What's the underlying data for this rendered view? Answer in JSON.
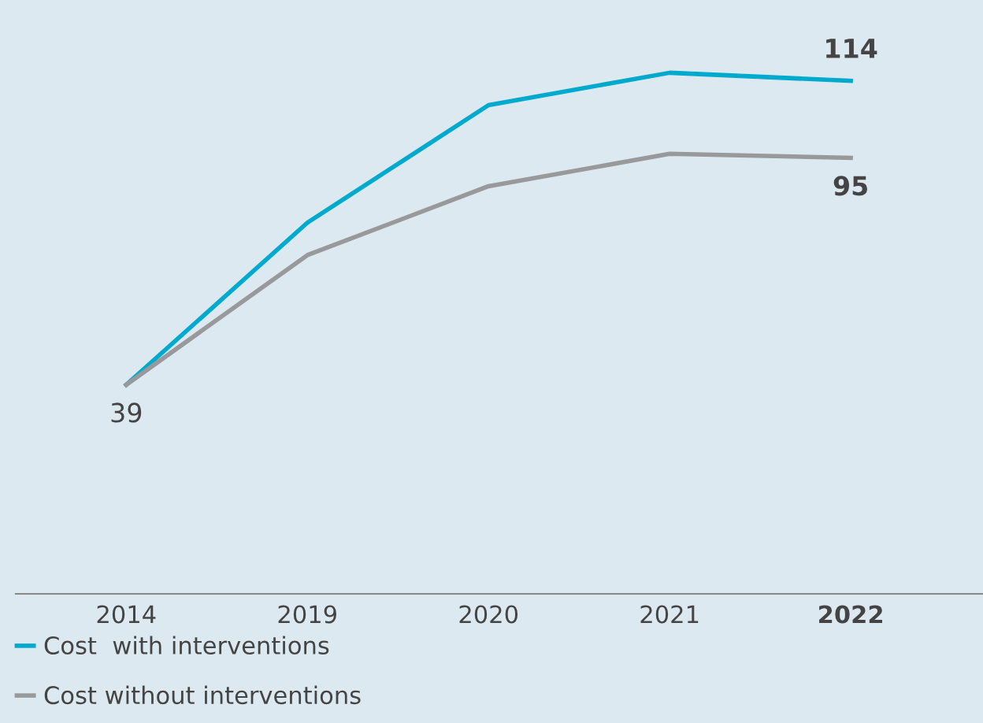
{
  "chart_data": {
    "type": "line",
    "categories": [
      "2014",
      "2019",
      "2020",
      "2021",
      "2022"
    ],
    "series": [
      {
        "name": "Cost  with interventions",
        "color": "#00a9ce",
        "values": [
          39,
          79,
          108,
          116,
          114
        ],
        "value_labels": [
          null,
          null,
          null,
          null,
          "114"
        ]
      },
      {
        "name": "Cost without interventions",
        "color": "#97999b",
        "values": [
          39,
          71,
          88,
          96,
          95
        ],
        "value_labels": [
          "39",
          null,
          null,
          null,
          "95"
        ]
      }
    ],
    "tick_labels": "x",
    "legend": "bottom",
    "marker": "none",
    "line_style": "solid"
  }
}
